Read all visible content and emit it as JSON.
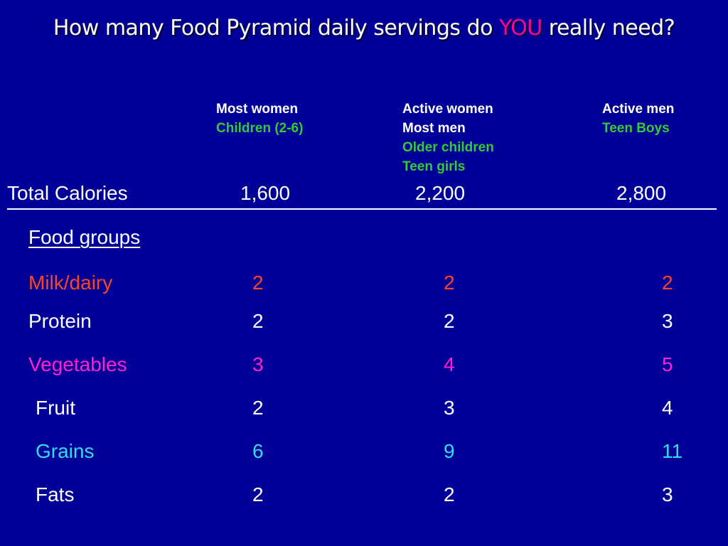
{
  "title": {
    "before": "How many Food Pyramid daily servings do ",
    "highlight": "YOU",
    "after": " really need?"
  },
  "columns": [
    {
      "lines": [
        {
          "text": "Most women",
          "color": "#ffffff"
        },
        {
          "text": "Children (2-6)",
          "color": "#33cc33"
        }
      ]
    },
    {
      "lines": [
        {
          "text": "Active women",
          "color": "#ffffff"
        },
        {
          "text": "Most men",
          "color": "#ffffff"
        },
        {
          "text": "Older children",
          "color": "#33cc33"
        },
        {
          "text": "Teen girls",
          "color": "#33cc33"
        }
      ]
    },
    {
      "lines": [
        {
          "text": "Active men",
          "color": "#ffffff"
        },
        {
          "text": "Teen Boys",
          "color": "#33cc33"
        }
      ]
    }
  ],
  "calories": {
    "label": "Total Calories",
    "values": [
      "1,600",
      "2,200",
      "2,800"
    ]
  },
  "food_groups_heading": "Food groups",
  "rows": [
    {
      "label": "Milk/dairy",
      "color": "#ff4422",
      "values": [
        "2",
        "2",
        "2"
      ]
    },
    {
      "label": "Protein",
      "color": "#ffffff",
      "values": [
        "2",
        "2",
        "3"
      ]
    },
    {
      "label": "Vegetables",
      "color": "#ff22cc",
      "values": [
        "3",
        "4",
        "5"
      ]
    },
    {
      "label": "Fruit",
      "color": "#ffffff",
      "values": [
        "2",
        "3",
        "4"
      ]
    },
    {
      "label": "Grains",
      "color": "#33ddee",
      "values": [
        "6",
        "9",
        "11"
      ]
    },
    {
      "label": "Fats",
      "color": "#ffffff",
      "values": [
        "2",
        "2",
        "3"
      ]
    }
  ],
  "colors": {
    "background": "#000099",
    "title_highlight": "#ff0099",
    "subgroup": "#33cc33"
  }
}
